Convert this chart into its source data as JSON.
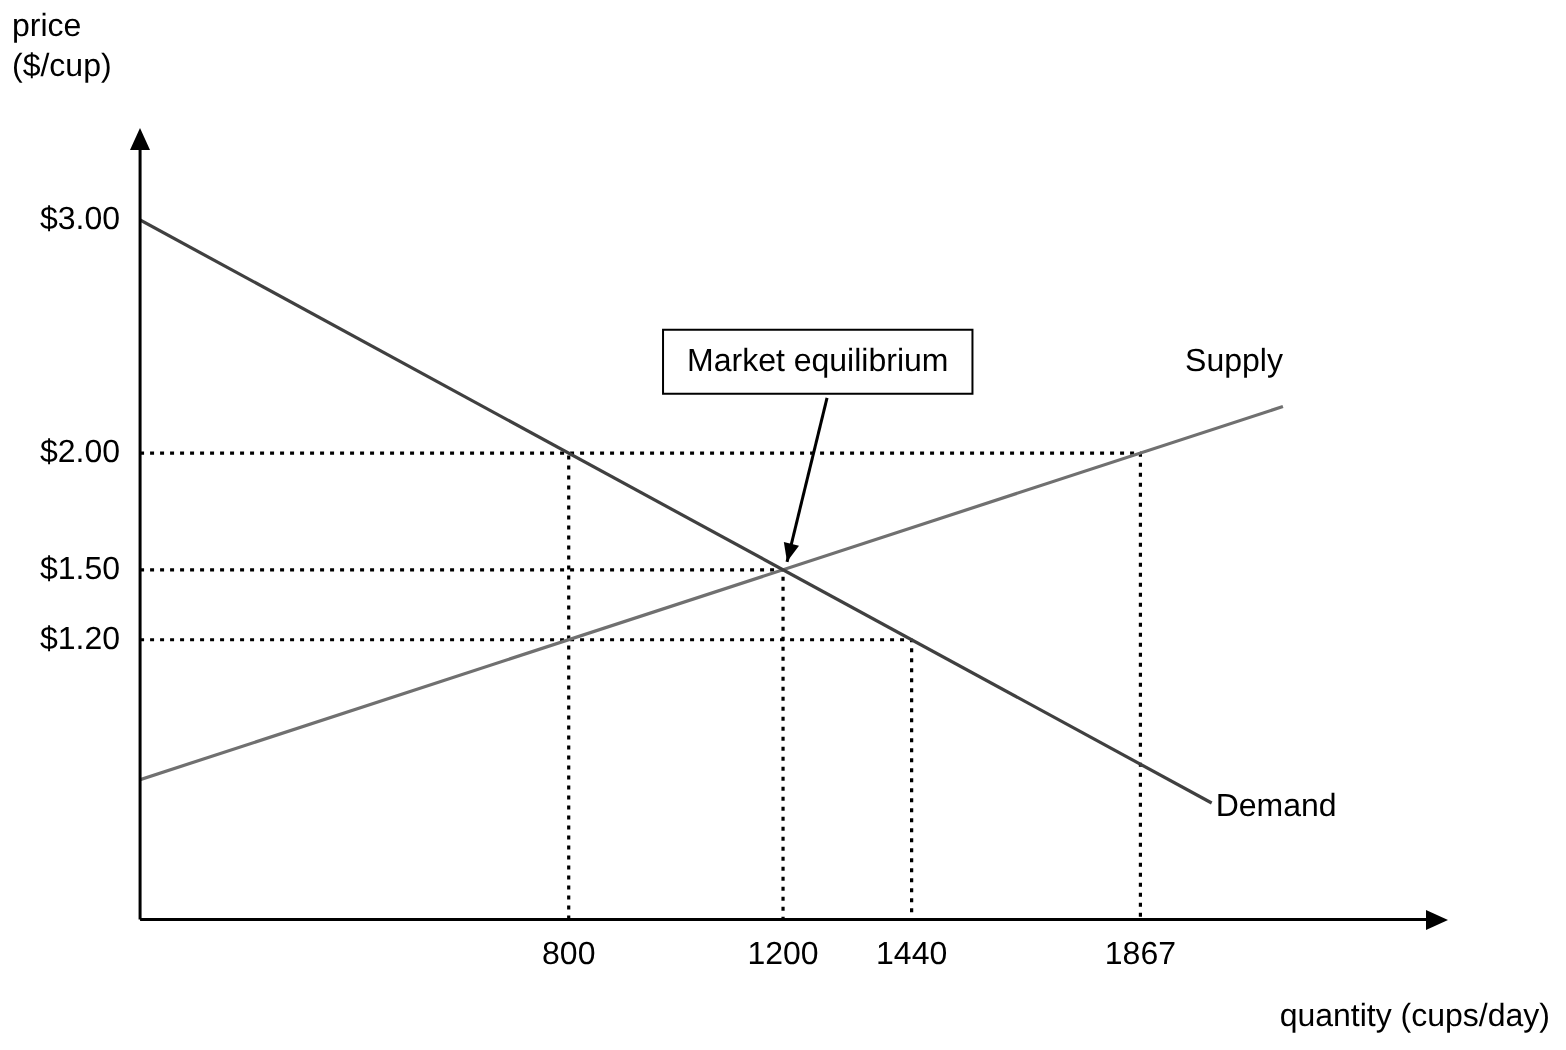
{
  "chart_data": {
    "type": "line",
    "xlabel": "quantity (cups/day)",
    "ylabel": "price ($/cup)",
    "xlim": [
      0,
      2400
    ],
    "ylim": [
      0,
      3.3
    ],
    "xticks": [
      800,
      1200,
      1440,
      1867
    ],
    "yticks": [
      {
        "value": 1.2,
        "label": "$1.20"
      },
      {
        "value": 1.5,
        "label": "$1.50"
      },
      {
        "value": 2,
        "label": "$2.00"
      },
      {
        "value": 3,
        "label": "$3.00"
      }
    ],
    "grid": false,
    "legend": false,
    "marker": "none",
    "series": [
      {
        "name": "Demand",
        "color": "#404040",
        "x": [
          0,
          2000
        ],
        "values": [
          3,
          0.5
        ]
      },
      {
        "name": "Supply",
        "color": "#707070",
        "x": [
          0,
          2133
        ],
        "values": [
          0.6,
          2.2
        ]
      },
      {
        "color": "#000000",
        "line_style": "dotted",
        "x": [
          0,
          1867,
          1867
        ],
        "values": [
          2,
          2,
          0
        ]
      },
      {
        "color": "#000000",
        "line_style": "dotted",
        "x": [
          800,
          800
        ],
        "values": [
          0,
          2
        ]
      },
      {
        "color": "#000000",
        "line_style": "dotted",
        "x": [
          0,
          1200,
          1200
        ],
        "values": [
          1.5,
          1.5,
          0
        ]
      },
      {
        "color": "#000000",
        "line_style": "dotted",
        "x": [
          0,
          1440,
          1440
        ],
        "values": [
          1.2,
          1.2,
          0
        ]
      }
    ],
    "annotations": [
      {
        "text": "Market equilibrium",
        "x": 1200,
        "y": 1.5
      }
    ]
  }
}
